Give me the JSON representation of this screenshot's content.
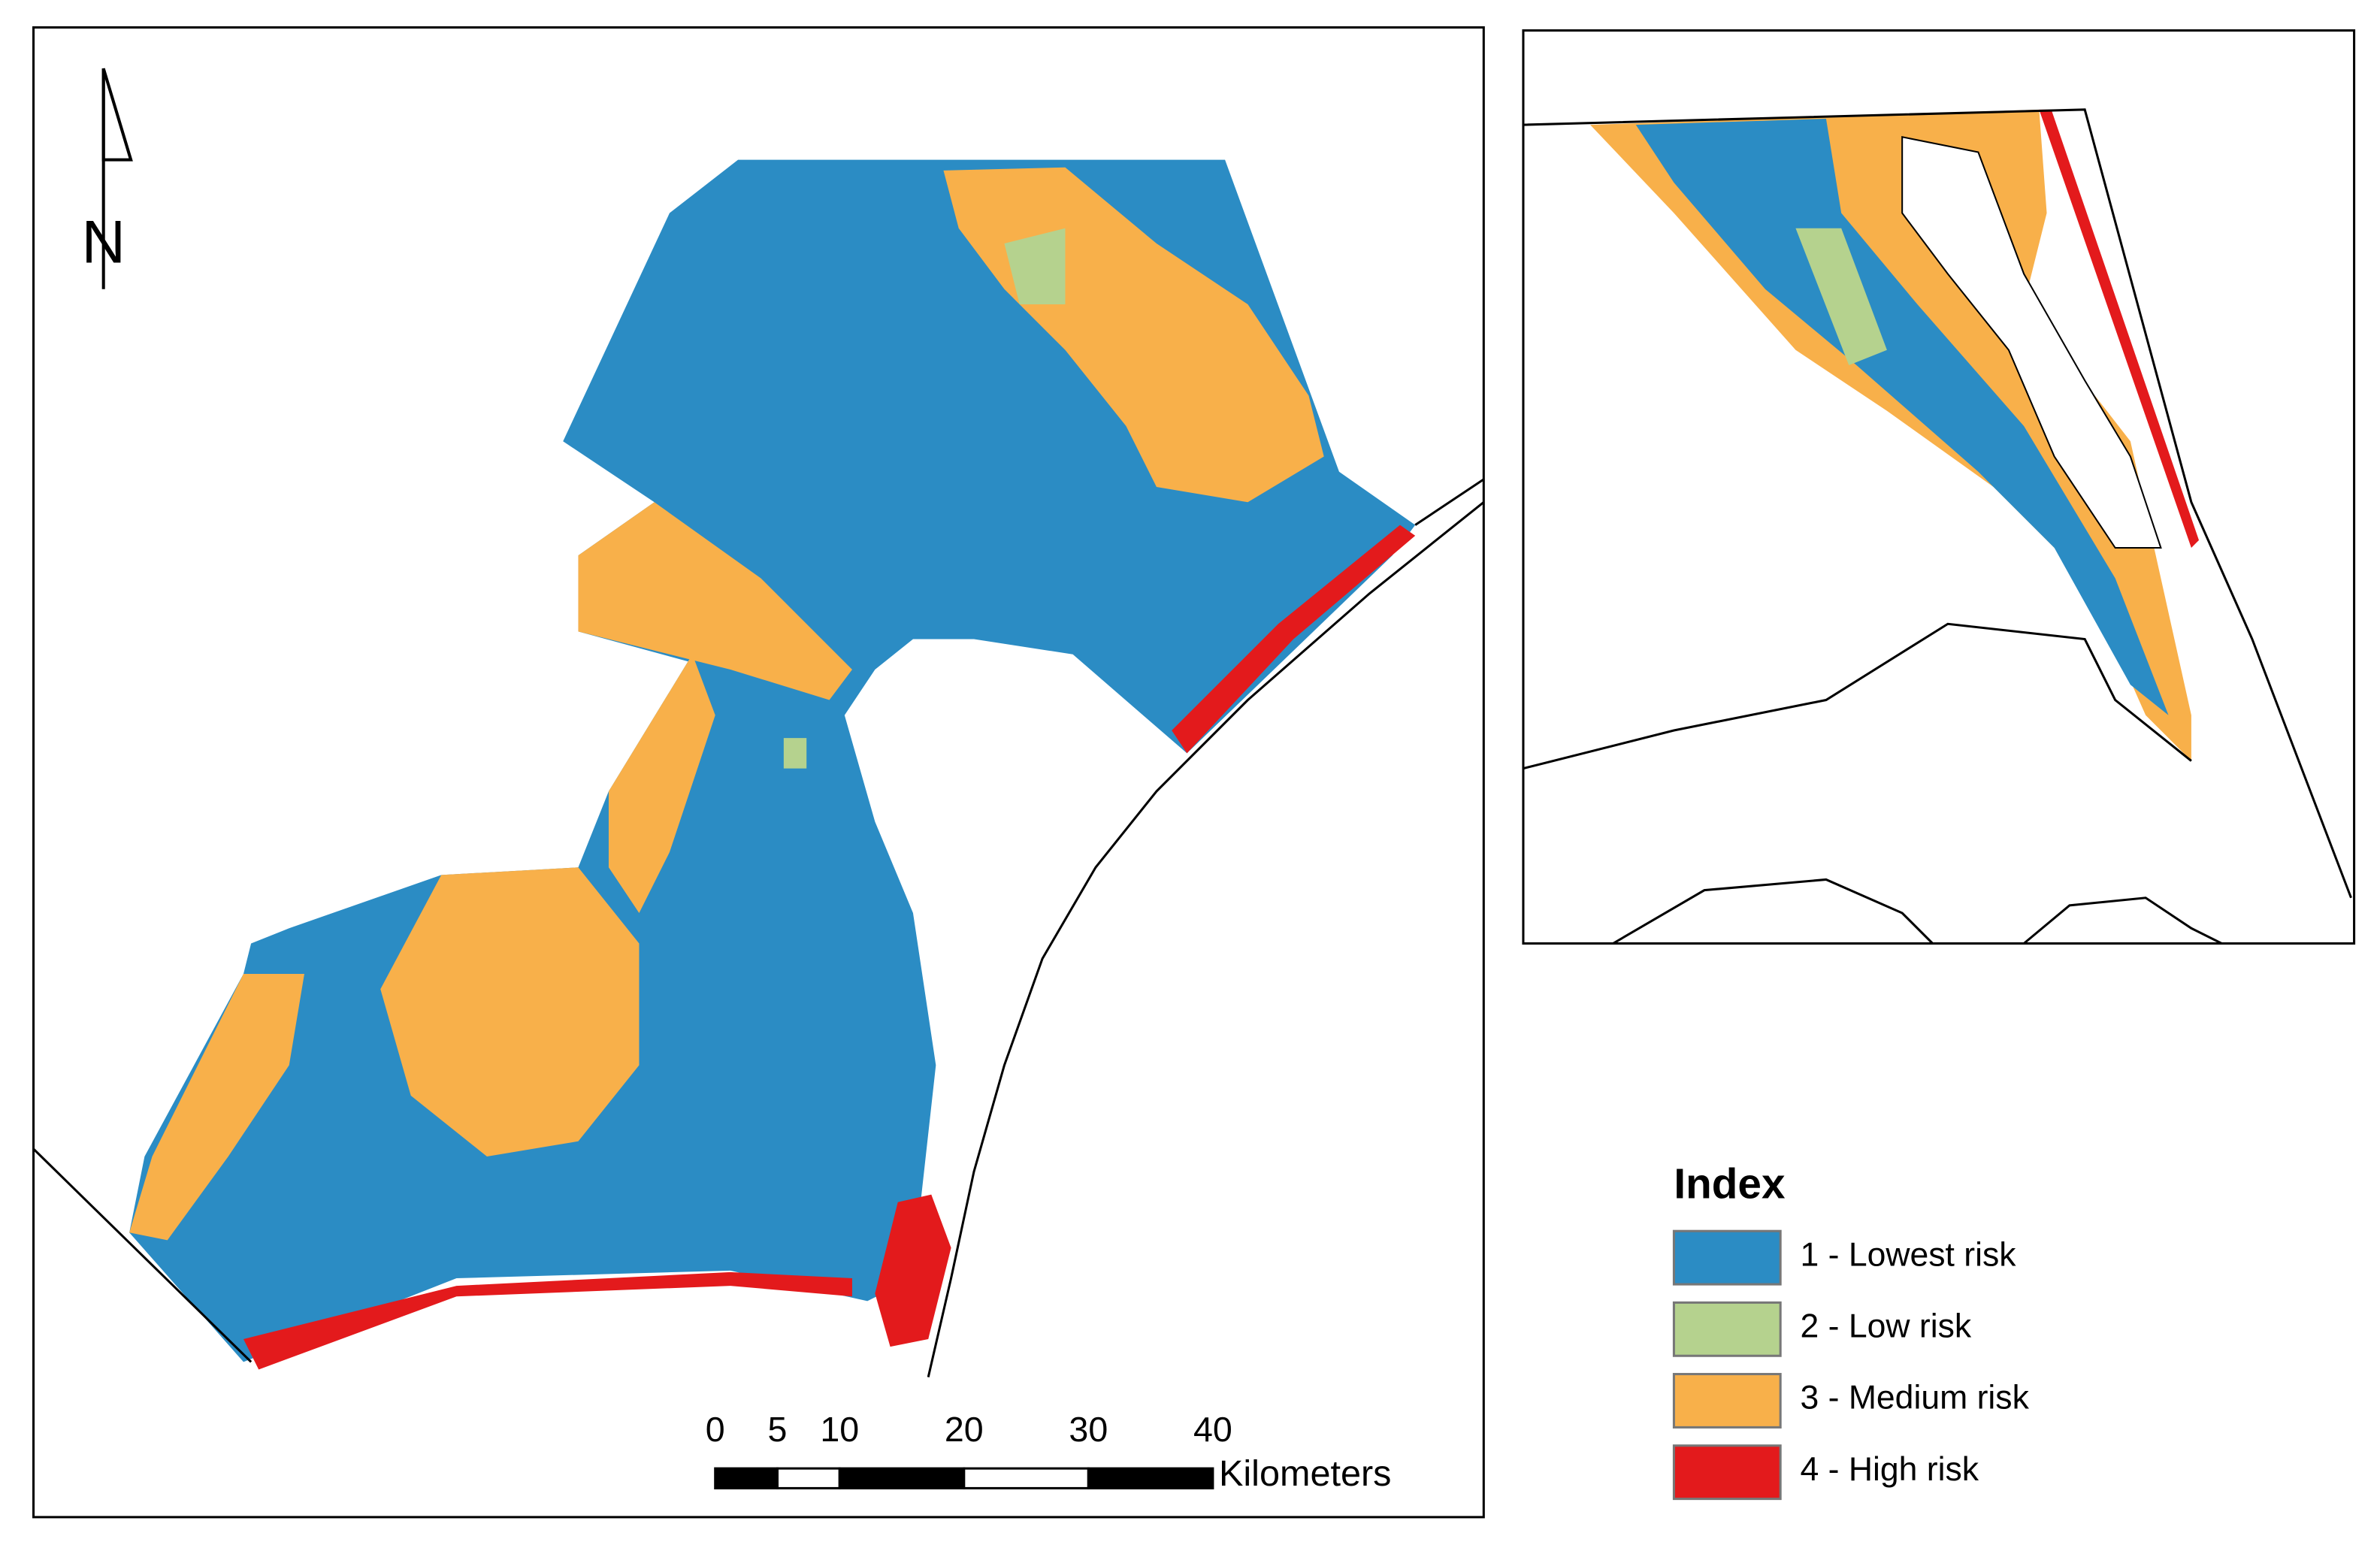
{
  "map": {
    "north_label": "N",
    "scale_bar": {
      "ticks": [
        0,
        5,
        10,
        20,
        30,
        40
      ],
      "unit": "Kilometers"
    },
    "legend": {
      "title": "Index",
      "items": [
        {
          "label": "1 - Lowest risk",
          "color": "#2b8cc4"
        },
        {
          "label": "2 - Low risk",
          "color": "#b5d28e"
        },
        {
          "label": "3 - Medium risk",
          "color": "#f8b04a"
        },
        {
          "label": "4 - High risk",
          "color": "#e31a1c"
        }
      ]
    }
  }
}
